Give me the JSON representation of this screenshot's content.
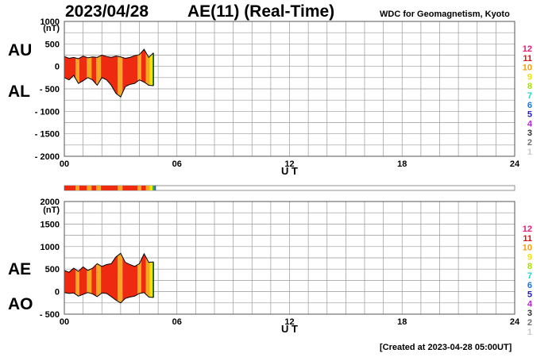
{
  "header": {
    "date": "2023/04/28",
    "title": "AE(11) (Real-Time)",
    "source": "WDC for Geomagnetism, Kyoto"
  },
  "footer": {
    "created": "[Created at 2023-04-28 05:00UT]"
  },
  "palette": {
    "levels": [
      "12",
      "11",
      "10",
      "9",
      "8",
      "7",
      "6",
      "5",
      "4",
      "3",
      "2",
      "1"
    ],
    "colors": [
      "#e8197a",
      "#e01010",
      "#f5a000",
      "#f0e000",
      "#a8e000",
      "#20d8c8",
      "#1878e0",
      "#2020c0",
      "#c020e0",
      "#303030",
      "#707070",
      "#c8c8c8"
    ]
  },
  "fill_colors": {
    "red": "#ee2a10",
    "orange": "#f5a623",
    "yellow": "#f5e400",
    "green": "#4caf20",
    "blue": "#1a5fd0"
  },
  "chart_data": [
    {
      "type": "area",
      "series_labels": [
        "AU",
        "AL"
      ],
      "ylabel": "(nT)",
      "xlabel": "U T",
      "xlim": [
        0,
        24
      ],
      "ylim": [
        -2000,
        1000
      ],
      "yticks": [
        1000,
        500,
        0,
        -500,
        -1000,
        -1500,
        -2000
      ],
      "ytick_labels": [
        "1000",
        "500",
        "0",
        "- 500",
        "- 1000",
        "- 1500",
        "- 2000"
      ],
      "xticks": [
        0,
        6,
        12,
        18,
        24
      ],
      "xtick_labels": [
        "00",
        "06",
        "12",
        "18",
        "24"
      ],
      "grid": true,
      "x": [
        0,
        0.25,
        0.5,
        0.75,
        1,
        1.25,
        1.5,
        1.75,
        2,
        2.25,
        2.5,
        2.75,
        3,
        3.25,
        3.5,
        3.75,
        4,
        4.25,
        4.5,
        4.75
      ],
      "upper": [
        220,
        180,
        200,
        170,
        230,
        190,
        210,
        200,
        250,
        220,
        200,
        230,
        210,
        180,
        200,
        240,
        260,
        380,
        200,
        300
      ],
      "lower": [
        -250,
        -300,
        -200,
        -380,
        -320,
        -250,
        -300,
        -420,
        -250,
        -300,
        -420,
        -600,
        -680,
        -450,
        -400,
        -380,
        -300,
        -350,
        -420,
        -430
      ]
    },
    {
      "type": "area",
      "series_labels": [
        "AE",
        "AO"
      ],
      "ylabel": "(nT)",
      "xlabel": "U T",
      "xlim": [
        0,
        24
      ],
      "ylim": [
        -500,
        2000
      ],
      "yticks": [
        2000,
        1500,
        1000,
        500,
        0,
        -500
      ],
      "ytick_labels": [
        "2000",
        "1500",
        "1000",
        "500",
        "0",
        "- 500"
      ],
      "xticks": [
        0,
        6,
        12,
        18,
        24
      ],
      "xtick_labels": [
        "00",
        "06",
        "12",
        "18",
        "24"
      ],
      "grid": true,
      "x": [
        0,
        0.25,
        0.5,
        0.75,
        1,
        1.25,
        1.5,
        1.75,
        2,
        2.25,
        2.5,
        2.75,
        3,
        3.25,
        3.5,
        3.75,
        4,
        4.25,
        4.5,
        4.75
      ],
      "upper": [
        470,
        430,
        520,
        450,
        550,
        470,
        520,
        620,
        560,
        600,
        620,
        770,
        850,
        650,
        600,
        560,
        620,
        840,
        650,
        660
      ],
      "lower": [
        -20,
        -40,
        -30,
        -100,
        -60,
        -20,
        -50,
        -110,
        -30,
        -40,
        -110,
        -190,
        -250,
        -150,
        -120,
        -100,
        -40,
        -20,
        -120,
        -130
      ]
    }
  ],
  "ae_index_bar": {
    "segments": [
      {
        "start": 0,
        "end": 0.6,
        "color": "red"
      },
      {
        "start": 0.6,
        "end": 0.8,
        "color": "orange"
      },
      {
        "start": 0.8,
        "end": 1.2,
        "color": "red"
      },
      {
        "start": 1.2,
        "end": 1.45,
        "color": "orange"
      },
      {
        "start": 1.45,
        "end": 1.7,
        "color": "red"
      },
      {
        "start": 1.7,
        "end": 1.95,
        "color": "orange"
      },
      {
        "start": 1.95,
        "end": 2.85,
        "color": "red"
      },
      {
        "start": 2.85,
        "end": 3.1,
        "color": "orange"
      },
      {
        "start": 3.1,
        "end": 3.9,
        "color": "red"
      },
      {
        "start": 3.9,
        "end": 4.1,
        "color": "orange"
      },
      {
        "start": 4.1,
        "end": 4.35,
        "color": "red"
      },
      {
        "start": 4.35,
        "end": 4.55,
        "color": "orange"
      },
      {
        "start": 4.55,
        "end": 4.7,
        "color": "yellow"
      },
      {
        "start": 4.7,
        "end": 4.8,
        "color": "green"
      },
      {
        "start": 4.8,
        "end": 4.88,
        "color": "blue"
      }
    ]
  },
  "fill_bands": [
    {
      "start": 0,
      "end": 0.6,
      "color": "red"
    },
    {
      "start": 0.6,
      "end": 0.8,
      "color": "orange"
    },
    {
      "start": 0.8,
      "end": 1.2,
      "color": "red"
    },
    {
      "start": 1.2,
      "end": 1.45,
      "color": "orange"
    },
    {
      "start": 1.45,
      "end": 1.7,
      "color": "red"
    },
    {
      "start": 1.7,
      "end": 1.95,
      "color": "orange"
    },
    {
      "start": 1.95,
      "end": 2.85,
      "color": "red"
    },
    {
      "start": 2.85,
      "end": 3.1,
      "color": "orange"
    },
    {
      "start": 3.1,
      "end": 3.9,
      "color": "red"
    },
    {
      "start": 3.9,
      "end": 4.1,
      "color": "orange"
    },
    {
      "start": 4.1,
      "end": 4.35,
      "color": "red"
    },
    {
      "start": 4.35,
      "end": 4.55,
      "color": "orange"
    },
    {
      "start": 4.55,
      "end": 4.7,
      "color": "yellow"
    },
    {
      "start": 4.7,
      "end": 4.78,
      "color": "green"
    },
    {
      "start": 4.78,
      "end": 4.88,
      "color": "blue"
    }
  ]
}
